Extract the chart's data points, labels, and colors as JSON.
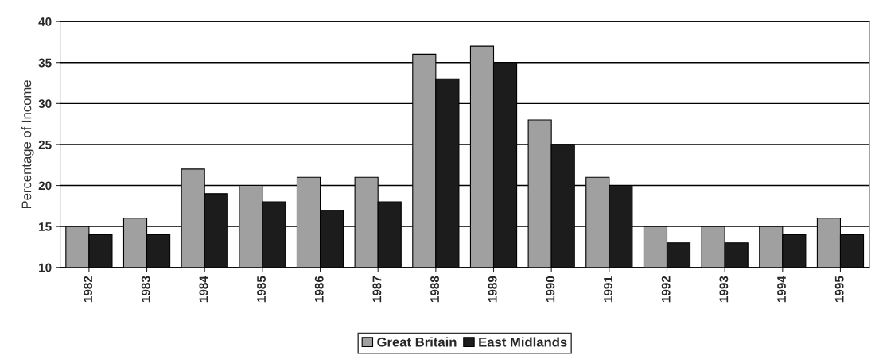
{
  "chart_data": {
    "type": "bar",
    "ylabel": "Percentage of Income",
    "categories": [
      "1982",
      "1983",
      "1984",
      "1985",
      "1986",
      "1987",
      "1988",
      "1989",
      "1990",
      "1991",
      "1992",
      "1993",
      "1994",
      "1995"
    ],
    "series": [
      {
        "name": "Great Britain",
        "color": "#a0a0a0",
        "values": [
          15,
          16,
          22,
          20,
          21,
          21,
          36,
          37,
          28,
          21,
          15,
          15,
          15,
          16
        ]
      },
      {
        "name": "East Midlands",
        "color": "#1c1c1c",
        "values": [
          14,
          14,
          19,
          18,
          17,
          18,
          33,
          35,
          25,
          20,
          13,
          13,
          14,
          14
        ]
      }
    ],
    "ylim": [
      10,
      40
    ],
    "yticks": [
      10,
      15,
      20,
      25,
      30,
      35,
      40
    ],
    "grid": "y",
    "legend": "bottom"
  }
}
